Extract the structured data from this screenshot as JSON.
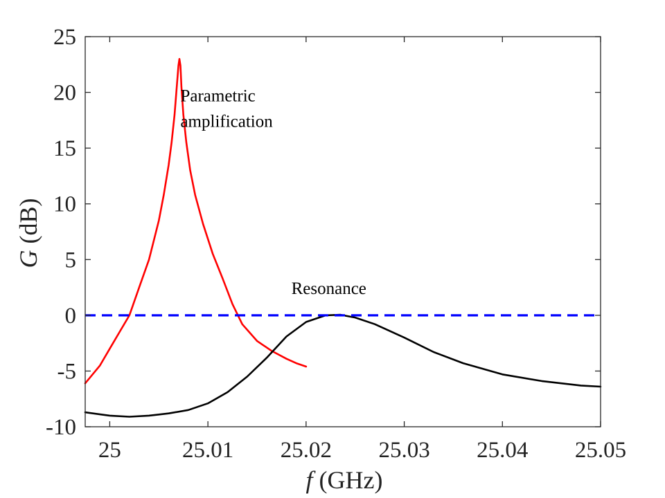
{
  "chart_data": {
    "type": "line",
    "title": "",
    "xlabel_symbol": "f",
    "xlabel_unit": " (GHz)",
    "ylabel_symbol": "G",
    "ylabel_unit": " (dB)",
    "xlim": [
      24.9975,
      25.05
    ],
    "ylim": [
      -10,
      25
    ],
    "xticks": [
      25,
      25.01,
      25.02,
      25.03,
      25.04,
      25.05
    ],
    "xtick_labels": [
      "25",
      "25.01",
      "25.02",
      "25.03",
      "25.04",
      "25.05"
    ],
    "yticks": [
      -10,
      -5,
      0,
      5,
      10,
      15,
      20,
      25
    ],
    "ytick_labels": [
      "-10",
      "-5",
      "0",
      "5",
      "10",
      "15",
      "20",
      "25"
    ],
    "grid": false,
    "annotations": [
      {
        "lines": [
          "Parametric",
          "amplification"
        ],
        "x": 25.0072,
        "y": 19.2
      },
      {
        "lines": [
          "Resonance"
        ],
        "x": 25.0185,
        "y": 1.9
      }
    ],
    "series": [
      {
        "color": "#ff0000",
        "dash": "solid",
        "x": [
          24.9975,
          24.999,
          25.0,
          25.001,
          25.002,
          25.003,
          25.004,
          25.005,
          25.0055,
          25.006,
          25.0063,
          25.0066,
          25.0068,
          25.007,
          25.0071,
          25.0072,
          25.0073,
          25.0075,
          25.0078,
          25.0082,
          25.0087,
          25.0095,
          25.0105,
          25.0115,
          25.0125,
          25.0135,
          25.015,
          25.0165,
          25.018,
          25.019,
          25.02
        ],
        "y": [
          -6.1,
          -4.5,
          -3.0,
          -1.5,
          0.0,
          2.5,
          5.0,
          8.5,
          10.8,
          13.5,
          15.5,
          18.0,
          20.2,
          22.4,
          23.0,
          22.4,
          20.5,
          18.0,
          15.5,
          13.0,
          10.8,
          8.2,
          5.5,
          3.3,
          1.0,
          -0.8,
          -2.3,
          -3.2,
          -3.9,
          -4.3,
          -4.6
        ]
      },
      {
        "color": "#000000",
        "dash": "solid",
        "x": [
          24.9975,
          25.0,
          25.002,
          25.004,
          25.006,
          25.008,
          25.01,
          25.012,
          25.014,
          25.016,
          25.018,
          25.02,
          25.022,
          25.0235,
          25.025,
          25.027,
          25.03,
          25.033,
          25.036,
          25.04,
          25.044,
          25.048,
          25.05
        ],
        "y": [
          -8.7,
          -9.0,
          -9.1,
          -9.0,
          -8.8,
          -8.5,
          -7.9,
          -6.9,
          -5.5,
          -3.8,
          -1.9,
          -0.6,
          0.0,
          0.05,
          -0.2,
          -0.8,
          -2.0,
          -3.3,
          -4.3,
          -5.3,
          -5.9,
          -6.3,
          -6.4
        ]
      },
      {
        "color": "#0000ff",
        "dash": "dashed",
        "x": [
          24.9975,
          25.05
        ],
        "y": [
          0,
          0
        ]
      }
    ]
  }
}
